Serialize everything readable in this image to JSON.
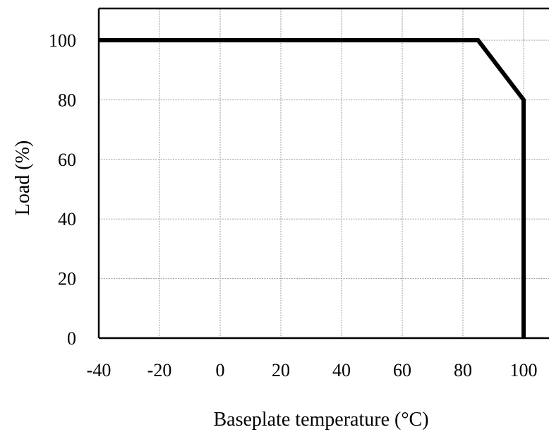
{
  "chart_data": {
    "type": "line",
    "title": "",
    "xlabel": "Baseplate temperature (°C)",
    "ylabel": "Load (%)",
    "xlim": [
      -40,
      110
    ],
    "ylim": [
      0,
      110
    ],
    "x_ticks": [
      "-40",
      "-20",
      "0",
      "20",
      "40",
      "60",
      "80",
      "100"
    ],
    "y_ticks": [
      "0",
      "20",
      "40",
      "60",
      "80",
      "100"
    ],
    "grid": true,
    "series": [
      {
        "x": [
          -40,
          85,
          100,
          100
        ],
        "y": [
          100,
          100,
          80,
          0
        ]
      }
    ],
    "colors": {
      "line": "#000000",
      "grid": "#9a9a9a"
    }
  }
}
